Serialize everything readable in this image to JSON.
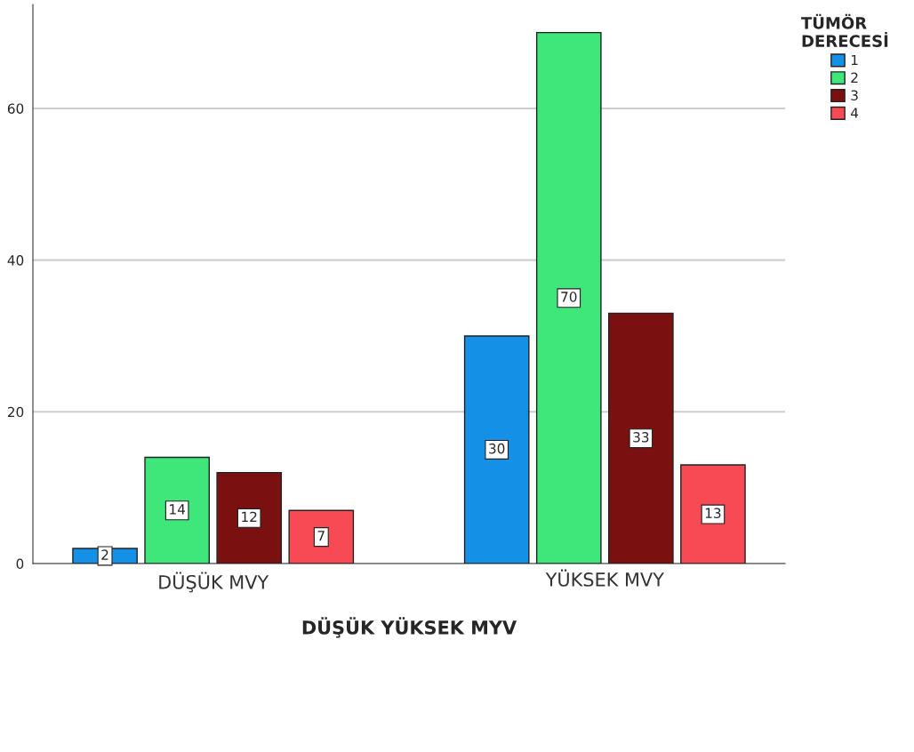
{
  "chart_data": {
    "type": "bar",
    "xlabel": "DÜŞÜK YÜKSEK MYV",
    "legend_title": "TÜMÖR\nDERECESİ",
    "categories": [
      "DÜŞÜK MVY",
      "YÜKSEK MVY"
    ],
    "series": [
      {
        "name": "1",
        "color": "#1490e6",
        "values": [
          2,
          30
        ]
      },
      {
        "name": "2",
        "color": "#3fe67a",
        "values": [
          14,
          70
        ]
      },
      {
        "name": "3",
        "color": "#7a1010",
        "values": [
          12,
          33
        ]
      },
      {
        "name": "4",
        "color": "#f64b55",
        "values": [
          7,
          13
        ]
      }
    ],
    "ylim": [
      0,
      73.7
    ],
    "yticks": [
      0,
      20,
      40,
      60
    ],
    "grid": "y",
    "legend": "top right",
    "data_labels": true
  }
}
